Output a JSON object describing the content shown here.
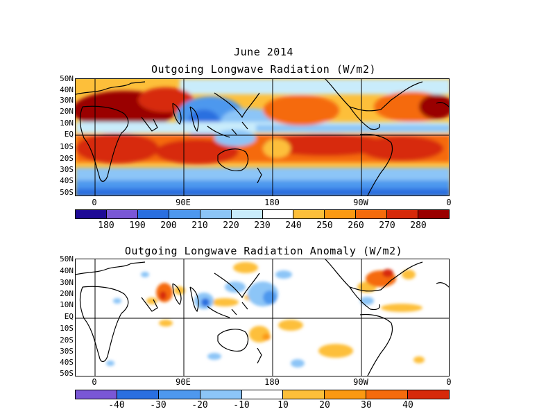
{
  "month_title": "June 2014",
  "top_panel": {
    "title": "Outgoing Longwave Radiation (W/m2)",
    "lat_labels": [
      "50N",
      "40N",
      "30N",
      "20N",
      "10N",
      "EQ",
      "10S",
      "20S",
      "30S",
      "40S",
      "50S"
    ],
    "lon_labels": [
      "0",
      "90E",
      "180",
      "90W",
      "0"
    ],
    "colorbar": {
      "colors": [
        "#1e0a96",
        "#7a57d6",
        "#2a6fe0",
        "#4e98ee",
        "#8cc5f7",
        "#c9ecfb",
        "#ffffff",
        "#fdbf3a",
        "#fb9912",
        "#f56b0c",
        "#d7290a",
        "#9a0000"
      ],
      "labels": [
        "180",
        "190",
        "200",
        "210",
        "220",
        "230",
        "240",
        "250",
        "260",
        "270",
        "280"
      ]
    }
  },
  "bottom_panel": {
    "title": "Outgoing Longwave Radiation Anomaly (W/m2)",
    "lat_labels": [
      "50N",
      "40N",
      "30N",
      "20N",
      "10N",
      "EQ",
      "10S",
      "20S",
      "30S",
      "40S",
      "50S"
    ],
    "lon_labels": [
      "0",
      "90E",
      "180",
      "90W",
      "0"
    ],
    "colorbar": {
      "colors": [
        "#7a57d6",
        "#2a6fe0",
        "#4e98ee",
        "#8cc5f7",
        "#ffffff",
        "#fdbf3a",
        "#fb9912",
        "#f56b0c",
        "#d7290a"
      ],
      "labels": [
        "-40",
        "-30",
        "-20",
        "-10",
        "10",
        "20",
        "30",
        "40"
      ]
    }
  }
}
